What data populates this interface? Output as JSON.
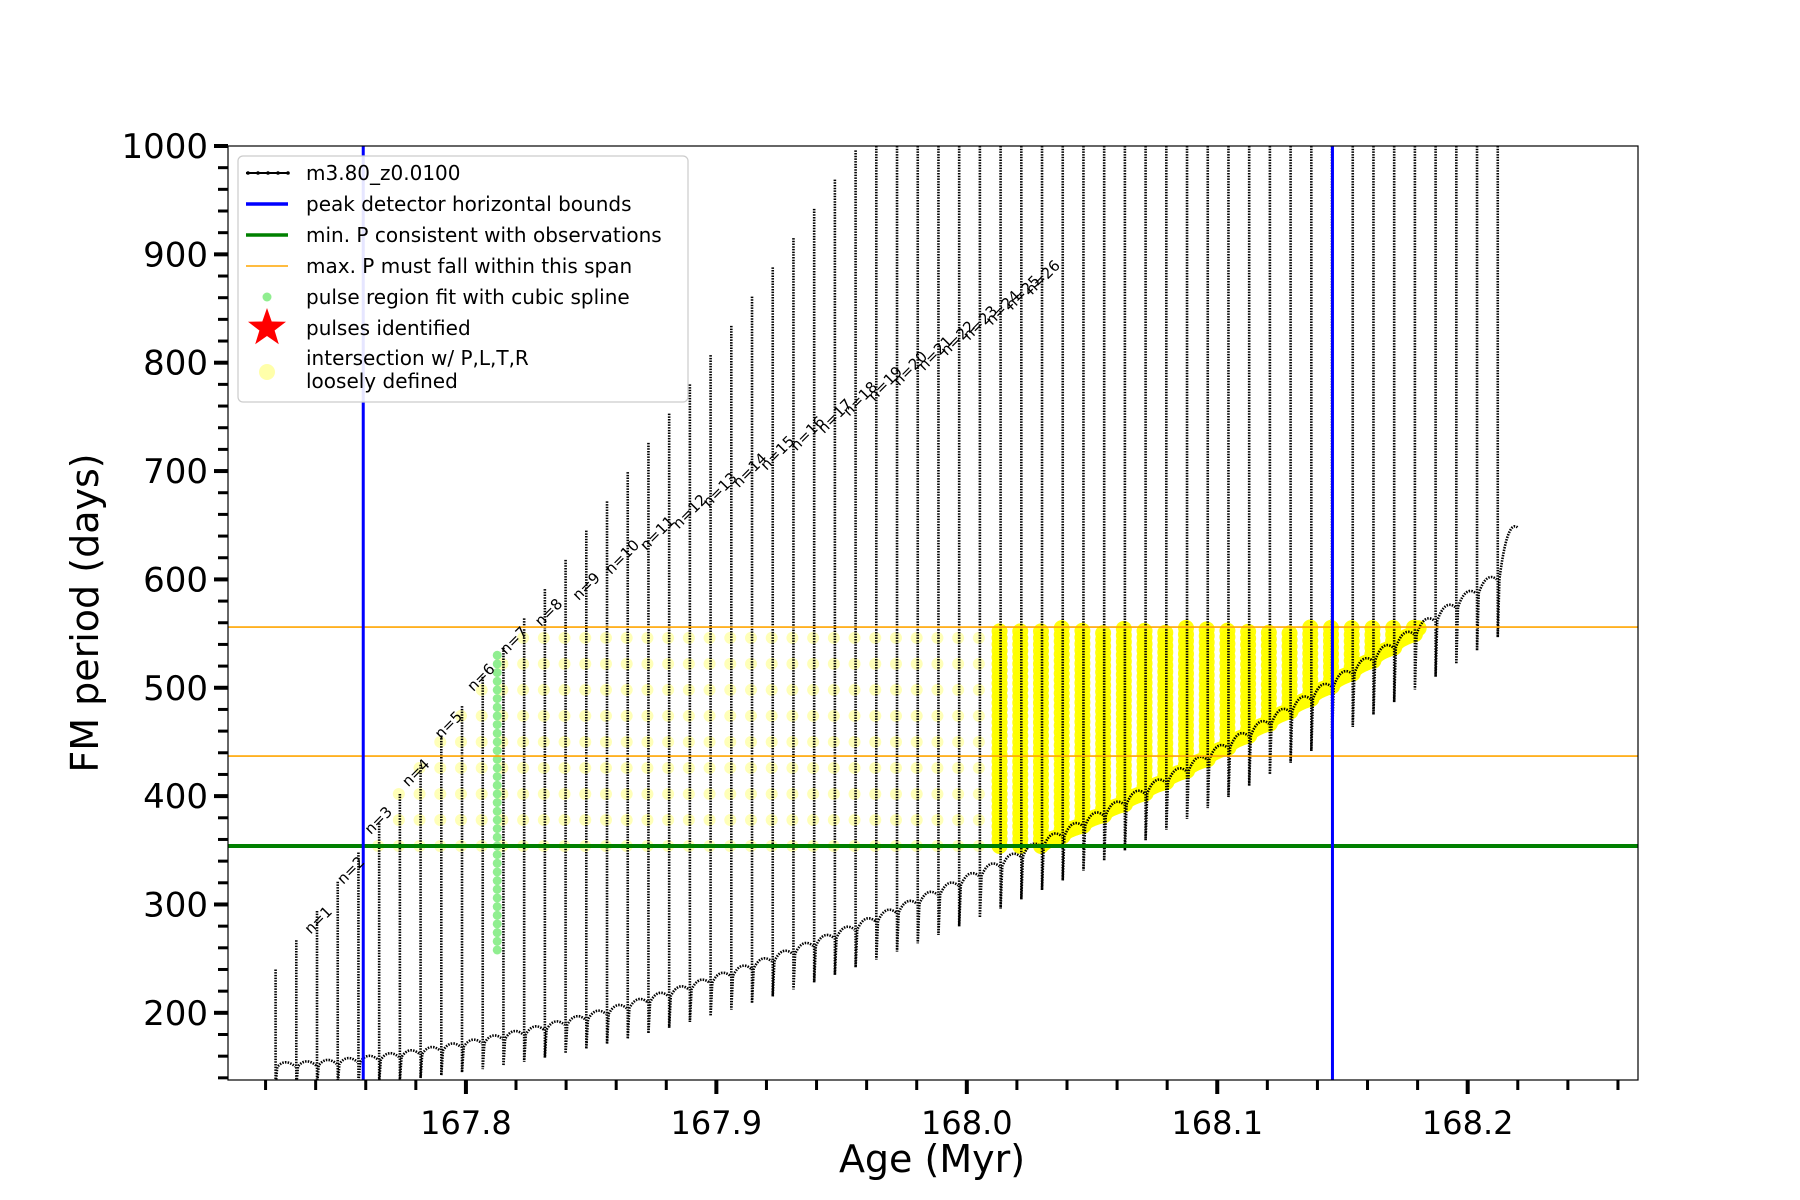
{
  "chart_data": {
    "type": "line",
    "xlabel": "Age (Myr)",
    "ylabel": "FM period (days)",
    "xlim": [
      167.705,
      168.268
    ],
    "ylim": [
      138,
      1000
    ],
    "xticks": [
      "167.8",
      "167.9",
      "168.0",
      "168.1",
      "168.2"
    ],
    "yticks": [
      "200",
      "300",
      "400",
      "500",
      "600",
      "700",
      "800",
      "900",
      "1000"
    ],
    "xtick_values": [
      167.8,
      167.9,
      168.0,
      168.1,
      168.2
    ],
    "ytick_values": [
      200,
      300,
      400,
      500,
      600,
      700,
      800,
      900,
      1000
    ],
    "model": {
      "name": "m3.80_z0.0100",
      "color": "#000000",
      "age_start": 167.724,
      "age_end": 168.212,
      "pulse_count": 60,
      "base_period_start": 150,
      "base_period_end": 600
    },
    "hlines": [
      {
        "label": "min. P consistent with observations",
        "y": 354,
        "color": "#008000"
      },
      {
        "label": "max. P must fall within this span",
        "y": 437,
        "color": "#FFA500"
      },
      {
        "label": "max. P must fall within this span",
        "y": 556,
        "color": "#FFA500"
      }
    ],
    "vlines": [
      {
        "label": "peak detector horizontal bounds",
        "x": 167.759,
        "color": "#0000FF"
      },
      {
        "label": "peak detector horizontal bounds",
        "x": 168.146,
        "color": "#0000FF"
      }
    ],
    "pulse_labels": [
      {
        "text": "n=1",
        "x": 167.738,
        "y": 272
      },
      {
        "text": "n=2",
        "x": 167.751,
        "y": 318
      },
      {
        "text": "n=3",
        "x": 167.762,
        "y": 364
      },
      {
        "text": "n=4",
        "x": 167.777,
        "y": 408
      },
      {
        "text": "n=5",
        "x": 167.79,
        "y": 452
      },
      {
        "text": "n=6",
        "x": 167.803,
        "y": 496
      },
      {
        "text": "n=7",
        "x": 167.816,
        "y": 530
      },
      {
        "text": "n=8",
        "x": 167.83,
        "y": 556
      },
      {
        "text": "n=9",
        "x": 167.845,
        "y": 580
      },
      {
        "text": "n=10",
        "x": 167.858,
        "y": 604
      },
      {
        "text": "n=11",
        "x": 167.872,
        "y": 626
      },
      {
        "text": "n=12",
        "x": 167.885,
        "y": 646
      },
      {
        "text": "n=13",
        "x": 167.897,
        "y": 666
      },
      {
        "text": "n=14",
        "x": 167.909,
        "y": 684
      },
      {
        "text": "n=15",
        "x": 167.92,
        "y": 700
      },
      {
        "text": "n=16",
        "x": 167.932,
        "y": 718
      },
      {
        "text": "n=17",
        "x": 167.943,
        "y": 734
      },
      {
        "text": "n=18",
        "x": 167.953,
        "y": 750
      },
      {
        "text": "n=19",
        "x": 167.963,
        "y": 764
      },
      {
        "text": "n=20",
        "x": 167.973,
        "y": 778
      },
      {
        "text": "n=21",
        "x": 167.983,
        "y": 792
      },
      {
        "text": "n=22",
        "x": 167.992,
        "y": 806
      },
      {
        "text": "n=23",
        "x": 168.001,
        "y": 820
      },
      {
        "text": "n=24",
        "x": 168.01,
        "y": 834
      },
      {
        "text": "n=25",
        "x": 168.018,
        "y": 848
      },
      {
        "text": "n=26",
        "x": 168.026,
        "y": 862
      }
    ],
    "green_pulse": {
      "x": 167.8125,
      "y_min": 258,
      "y_max": 530,
      "color": "#90EE90"
    },
    "yellow_region": {
      "color": "#FFFF00",
      "y_min": 354,
      "y_max": 556
    },
    "legend": {
      "placement": "top-left",
      "items": [
        {
          "label": "m3.80_z0.0100",
          "marker": "line",
          "color": "#000000"
        },
        {
          "label": "peak detector horizontal bounds",
          "marker": "line",
          "color": "#0000FF"
        },
        {
          "label": "min. P consistent with observations",
          "marker": "line",
          "color": "#008000"
        },
        {
          "label": "max. P must fall within this span",
          "marker": "line",
          "color": "#FFA500"
        },
        {
          "label": "pulse region fit with cubic spline",
          "marker": "dot",
          "color": "#90EE90"
        },
        {
          "label": "pulses identified",
          "marker": "star",
          "color": "#FF0000"
        },
        {
          "label": "intersection w/ P,L,T,R",
          "label2": "loosely defined",
          "marker": "circle",
          "color": "#FFFFAA"
        }
      ]
    }
  }
}
